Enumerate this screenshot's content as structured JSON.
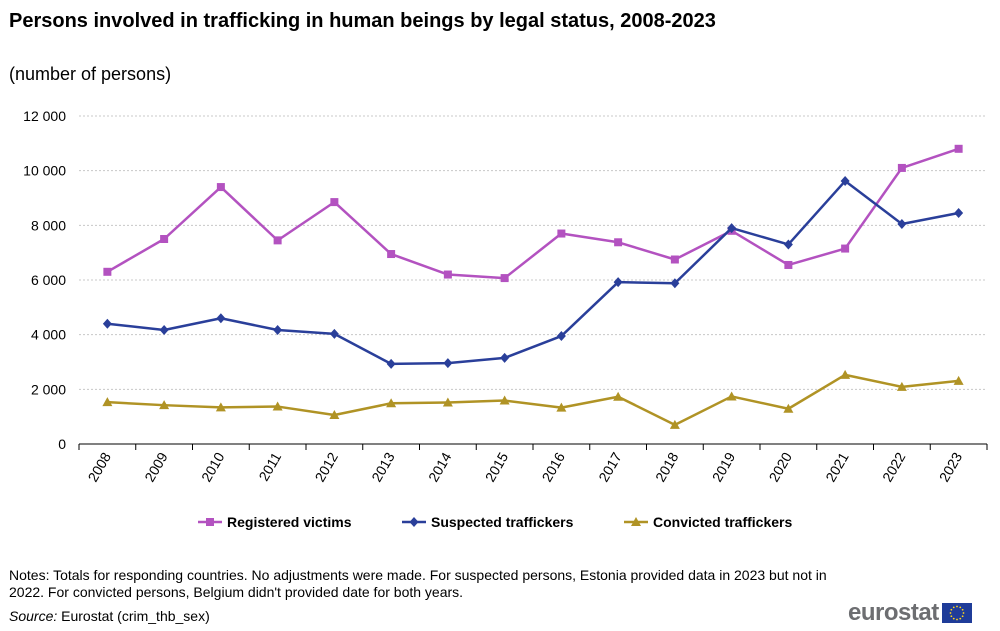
{
  "title": "Persons involved in trafficking in human beings by legal status, 2008-2023",
  "subtitle": "(number  of persons)",
  "notes": "Notes: Totals for responding countries. No adjustments  were made. For suspected persons, Estonia provided data in 2023 but not in 2022. For convicted persons, Belgium didn't provided date for both years.",
  "source_label": "Source:",
  "source_text": " Eurostat (crim_thb_sex)",
  "logo_text": "eurostat",
  "chart_data": {
    "type": "line",
    "x": [
      "2008",
      "2009",
      "2010",
      "2011",
      "2012",
      "2013",
      "2014",
      "2015",
      "2016",
      "2017",
      "2018",
      "2019",
      "2020",
      "2021",
      "2022",
      "2023"
    ],
    "ylim": [
      0,
      12000
    ],
    "yticks": [
      0,
      2000,
      4000,
      6000,
      8000,
      10000,
      12000
    ],
    "ytick_labels": [
      "0",
      "2 000",
      "4 000",
      "6 000",
      "8 000",
      "10 000",
      "12 000"
    ],
    "grid": true,
    "legend_position": "bottom",
    "series": [
      {
        "name": "Registered victims",
        "color": "#b352c0",
        "marker": "square",
        "values": [
          6300,
          7500,
          9400,
          7450,
          8850,
          6950,
          6200,
          6070,
          7700,
          7380,
          6750,
          7800,
          6550,
          7150,
          10100,
          10800
        ]
      },
      {
        "name": "Suspected traffickers",
        "color": "#2a3f9a",
        "marker": "diamond",
        "values": [
          4400,
          4170,
          4600,
          4170,
          4030,
          2930,
          2960,
          3150,
          3950,
          5920,
          5880,
          7900,
          7300,
          9620,
          8050,
          8450
        ]
      },
      {
        "name": "Convicted traffickers",
        "color": "#b09325",
        "marker": "triangle",
        "values": [
          1530,
          1420,
          1340,
          1370,
          1060,
          1490,
          1520,
          1590,
          1330,
          1730,
          700,
          1740,
          1290,
          2530,
          2090,
          2310
        ]
      }
    ]
  }
}
